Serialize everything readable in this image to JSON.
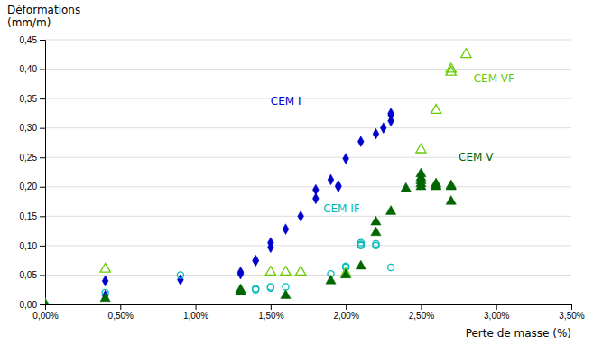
{
  "chart_data": {
    "type": "scatter",
    "x_label": "Perte de masse (%)",
    "y_label": [
      "Déformations",
      "(mm/m)"
    ],
    "xlim": [
      0.0,
      0.035
    ],
    "ylim": [
      0.0,
      0.45
    ],
    "xticks": [
      {
        "value": 0.0,
        "label": "0,00%"
      },
      {
        "value": 0.005,
        "label": "0,50%"
      },
      {
        "value": 0.01,
        "label": "1,00%"
      },
      {
        "value": 0.015,
        "label": "1,50%"
      },
      {
        "value": 0.02,
        "label": "2,00%"
      },
      {
        "value": 0.025,
        "label": "2,50%"
      },
      {
        "value": 0.03,
        "label": "3,00%"
      },
      {
        "value": 0.035,
        "label": "3,50%"
      }
    ],
    "yticks": [
      {
        "value": 0.0,
        "label": "0,00"
      },
      {
        "value": 0.05,
        "label": "0,05"
      },
      {
        "value": 0.1,
        "label": "0,10"
      },
      {
        "value": 0.15,
        "label": "0,15"
      },
      {
        "value": 0.2,
        "label": "0,20"
      },
      {
        "value": 0.25,
        "label": "0,25"
      },
      {
        "value": 0.3,
        "label": "0,30"
      },
      {
        "value": 0.35,
        "label": "0,35"
      },
      {
        "value": 0.4,
        "label": "0,40"
      },
      {
        "value": 0.45,
        "label": "0,45"
      }
    ],
    "grid": "y",
    "series": [
      {
        "color": "#0000CC",
        "marker": "diamond",
        "x": [
          0.004,
          0.004,
          0.009,
          0.013,
          0.013,
          0.014,
          0.014,
          0.015,
          0.015,
          0.016,
          0.017,
          0.018,
          0.018,
          0.019,
          0.0195,
          0.0195,
          0.02,
          0.021,
          0.022,
          0.0225,
          0.023,
          0.023,
          0.023
        ],
        "values": [
          0.015,
          0.04,
          0.042,
          0.055,
          0.052,
          0.074,
          0.075,
          0.097,
          0.105,
          0.128,
          0.15,
          0.18,
          0.195,
          0.212,
          0.2,
          0.202,
          0.248,
          0.277,
          0.29,
          0.3,
          0.312,
          0.322,
          0.325
        ]
      },
      {
        "color": "#00BBBB",
        "marker": "circle-open",
        "x": [
          0.0,
          0.004,
          0.009,
          0.014,
          0.014,
          0.015,
          0.015,
          0.016,
          0.019,
          0.02,
          0.02,
          0.021,
          0.021,
          0.021,
          0.022,
          0.022,
          0.023
        ],
        "values": [
          0.0,
          0.02,
          0.05,
          0.027,
          0.025,
          0.028,
          0.03,
          0.03,
          0.052,
          0.063,
          0.065,
          0.1,
          0.102,
          0.105,
          0.1,
          0.103,
          0.063
        ]
      },
      {
        "color": "#66CC00",
        "marker": "triangle-open",
        "x": [
          0.0,
          0.004,
          0.015,
          0.016,
          0.017,
          0.02,
          0.025,
          0.026,
          0.027,
          0.027,
          0.028
        ],
        "values": [
          0.0,
          0.06,
          0.055,
          0.055,
          0.055,
          0.053,
          0.263,
          0.33,
          0.395,
          0.4,
          0.425
        ]
      },
      {
        "color": "#006600",
        "marker": "triangle",
        "x": [
          0.0,
          0.004,
          0.013,
          0.013,
          0.016,
          0.019,
          0.02,
          0.021,
          0.022,
          0.022,
          0.023,
          0.024,
          0.025,
          0.025,
          0.025,
          0.025,
          0.025,
          0.026,
          0.026,
          0.026,
          0.027,
          0.027,
          0.027
        ],
        "values": [
          0.0,
          0.01,
          0.022,
          0.025,
          0.015,
          0.04,
          0.05,
          0.065,
          0.122,
          0.14,
          0.158,
          0.197,
          0.2,
          0.205,
          0.21,
          0.215,
          0.222,
          0.2,
          0.202,
          0.205,
          0.175,
          0.2,
          0.202
        ]
      }
    ],
    "annotations": [
      {
        "text": "CEM I",
        "x": 0.015,
        "y": 0.335,
        "color": "#0000CC"
      },
      {
        "text": "CEM IF",
        "x": 0.0185,
        "y": 0.152,
        "color": "#00BBBB"
      },
      {
        "text": "CEM VF",
        "x": 0.0285,
        "y": 0.373,
        "color": "#66CC00"
      },
      {
        "text": "CEM V",
        "x": 0.0275,
        "y": 0.24,
        "color": "#006600"
      }
    ]
  }
}
